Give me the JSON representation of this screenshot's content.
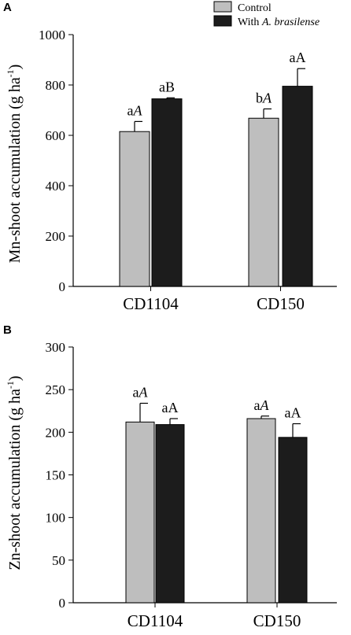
{
  "legend": {
    "control": "Control",
    "treated_prefix": "With ",
    "treated_italic": "A. brasilense"
  },
  "colors": {
    "control": "#bebebe",
    "treated": "#1c1c1c",
    "axis": "#000000"
  },
  "chart_data": [
    {
      "type": "bar",
      "panel": "A",
      "categories": [
        "CD1104",
        "CD150"
      ],
      "ylabel_main": "Mn-shoot accumulation (g ha",
      "ylabel_sup": "-1",
      "ylabel_end": ")",
      "ylim": [
        0,
        1000
      ],
      "yticks": [
        "0",
        "200",
        "400",
        "600",
        "800",
        "1000"
      ],
      "series": [
        {
          "name": "Control",
          "values": [
            615,
            668
          ],
          "errors": [
            40,
            37
          ],
          "labels": [
            [
              "a",
              "A"
            ],
            [
              "b",
              "A"
            ]
          ],
          "label_italic_second": [
            true,
            true
          ]
        },
        {
          "name": "With A. brasilense",
          "values": [
            745,
            795
          ],
          "errors": [
            4,
            70
          ],
          "labels": [
            [
              "a",
              "B"
            ],
            [
              "a",
              "A"
            ]
          ],
          "label_italic_second": [
            false,
            false
          ]
        }
      ]
    },
    {
      "type": "bar",
      "panel": "B",
      "categories": [
        "CD1104",
        "CD150"
      ],
      "ylabel_main": "Zn-shoot accumulation (g ha",
      "ylabel_sup": "-1",
      "ylabel_end": ")",
      "ylim": [
        0,
        300
      ],
      "yticks": [
        "0",
        "50",
        "100",
        "150",
        "200",
        "250",
        "300"
      ],
      "series": [
        {
          "name": "Control",
          "values": [
            212,
            216
          ],
          "errors": [
            22,
            3
          ],
          "labels": [
            [
              "a",
              "A"
            ],
            [
              "a",
              "A"
            ]
          ],
          "label_italic_second": [
            true,
            true
          ]
        },
        {
          "name": "With A. brasilense",
          "values": [
            209,
            194
          ],
          "errors": [
            7,
            16
          ],
          "labels": [
            [
              "a",
              "A"
            ],
            [
              "a",
              "A"
            ]
          ],
          "label_italic_second": [
            false,
            false
          ]
        }
      ]
    }
  ]
}
